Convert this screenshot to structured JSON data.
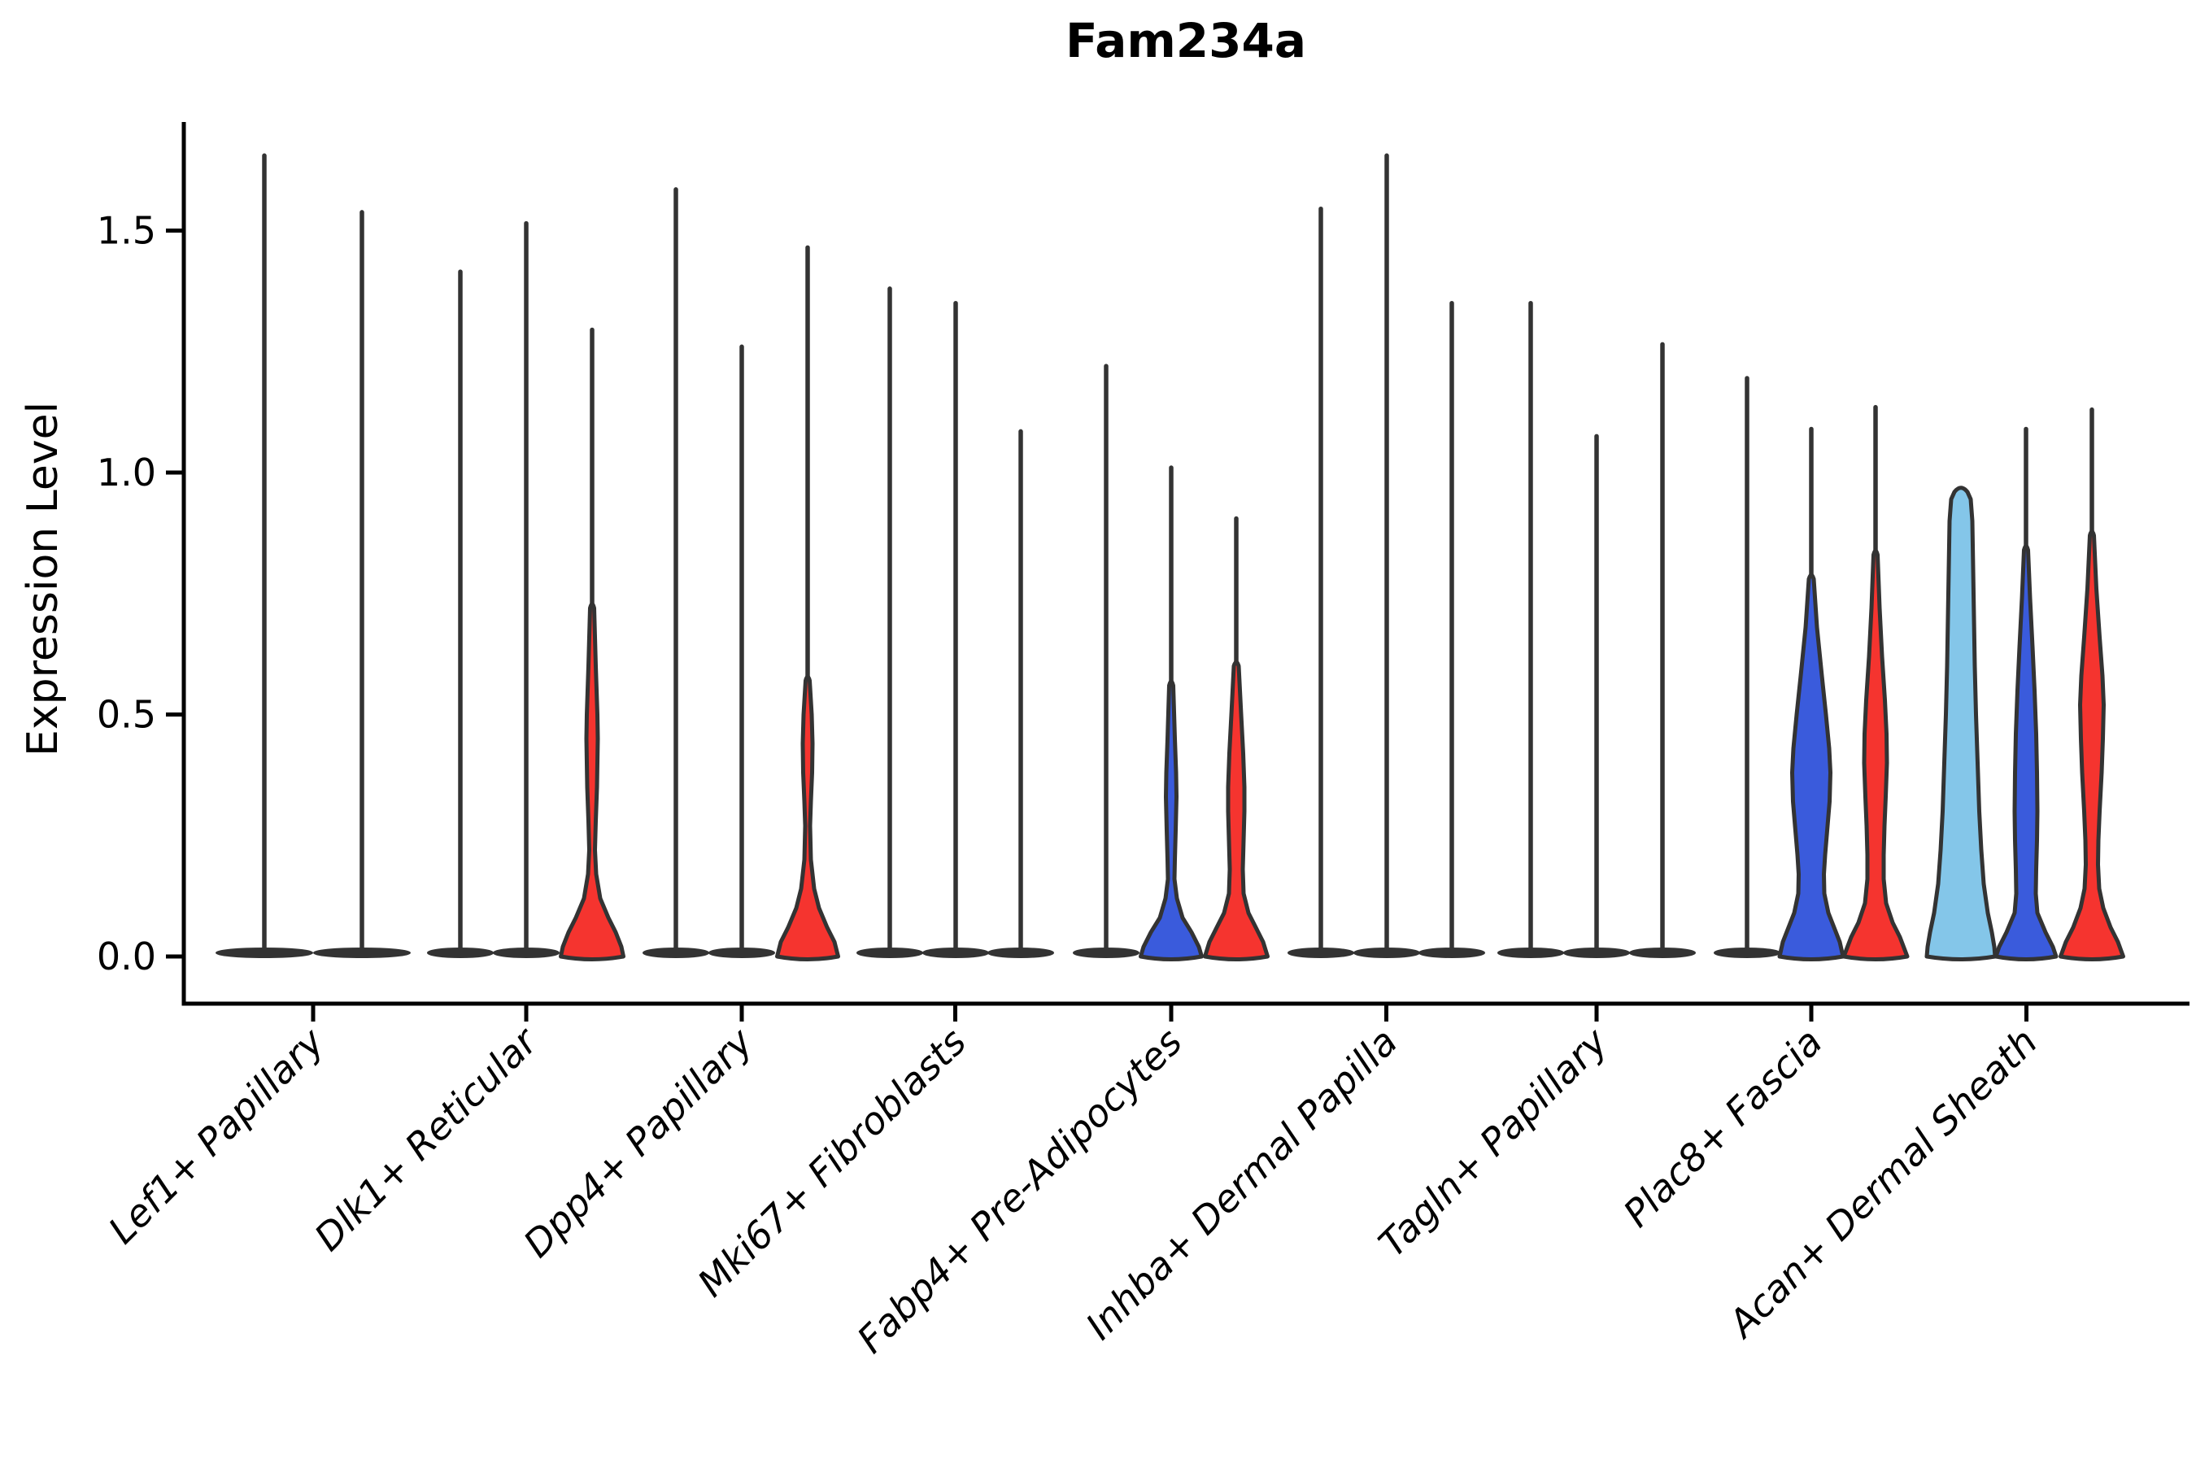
{
  "chart_data": {
    "type": "violin",
    "title": "Fam234a",
    "ylabel": "Expression Level",
    "xlabel": "",
    "yticks": [
      0.0,
      0.5,
      1.0,
      1.5
    ],
    "ylim": [
      -0.06,
      1.75
    ],
    "grid": false,
    "legend": "none",
    "categories": [
      "Lef1+ Papillary",
      "Dlk1+ Reticular",
      "Dpp4+ Papillary",
      "Mki67+ Fibroblasts",
      "Fabp4+ Pre-Adipocytes",
      "Inhba+ Dermal Papilla",
      "Tagln+ Papillary",
      "Plac8+ Fascia",
      "Acan+ Dermal Sheath"
    ],
    "splits": [
      {
        "name": "split-1",
        "color": "#84C6E9"
      },
      {
        "name": "split-2",
        "color": "#3A5BDC"
      },
      {
        "name": "split-3",
        "color": "#F5342F"
      }
    ],
    "outline_color": "#333333",
    "violins": [
      {
        "category": "Lef1+ Papillary",
        "split": 1,
        "x": 325,
        "max": 1.655,
        "style": "line",
        "half_width": 59
      },
      {
        "category": "Lef1+ Papillary",
        "split": 2,
        "x": 445,
        "max": 1.538,
        "style": "line",
        "half_width": 59
      },
      {
        "category": "Dlk1+ Reticular",
        "split": 1,
        "x": 566,
        "max": 1.415,
        "style": "line",
        "half_width": 40
      },
      {
        "category": "Dlk1+ Reticular",
        "split": 2,
        "x": 647,
        "max": 1.515,
        "style": "line",
        "half_width": 40
      },
      {
        "category": "Dlk1+ Reticular",
        "split": 3,
        "x": 728,
        "max": 1.295,
        "style": "filled",
        "color": "#F5342F",
        "profile": [
          [
            0.72,
            2.5
          ],
          [
            0.6,
            4.5
          ],
          [
            0.5,
            6.5
          ],
          [
            0.45,
            7
          ],
          [
            0.35,
            6
          ],
          [
            0.28,
            4.5
          ],
          [
            0.22,
            3.5
          ],
          [
            0.17,
            5
          ],
          [
            0.12,
            10
          ],
          [
            0.08,
            20
          ],
          [
            0.05,
            29
          ],
          [
            0.02,
            36
          ],
          [
            0,
            38.5
          ]
        ]
      },
      {
        "category": "Dpp4+ Papillary",
        "split": 1,
        "x": 831,
        "max": 1.585,
        "style": "line",
        "half_width": 40
      },
      {
        "category": "Dpp4+ Papillary",
        "split": 2,
        "x": 912,
        "max": 1.26,
        "style": "line",
        "half_width": 40
      },
      {
        "category": "Dpp4+ Papillary",
        "split": 3,
        "x": 993,
        "max": 1.465,
        "style": "filled",
        "color": "#F5342F",
        "profile": [
          [
            0.57,
            2.5
          ],
          [
            0.5,
            5
          ],
          [
            0.44,
            6
          ],
          [
            0.38,
            5.5
          ],
          [
            0.32,
            4
          ],
          [
            0.27,
            3
          ],
          [
            0.2,
            4
          ],
          [
            0.14,
            8
          ],
          [
            0.1,
            14
          ],
          [
            0.06,
            24
          ],
          [
            0.03,
            33
          ],
          [
            0,
            37.5
          ]
        ]
      },
      {
        "category": "Mki67+ Fibroblasts",
        "split": 1,
        "x": 1094,
        "max": 1.38,
        "style": "line",
        "half_width": 40
      },
      {
        "category": "Mki67+ Fibroblasts",
        "split": 2,
        "x": 1175,
        "max": 1.35,
        "style": "line",
        "half_width": 40
      },
      {
        "category": "Mki67+ Fibroblasts",
        "split": 3,
        "x": 1255,
        "max": 1.085,
        "style": "line",
        "half_width": 40
      },
      {
        "category": "Fabp4+ Pre-Adipocytes",
        "split": 1,
        "x": 1360,
        "max": 1.22,
        "style": "line",
        "half_width": 40
      },
      {
        "category": "Fabp4+ Pre-Adipocytes",
        "split": 2,
        "x": 1440,
        "max": 1.01,
        "style": "filled",
        "color": "#3A5BDC",
        "profile": [
          [
            0.56,
            2.5
          ],
          [
            0.45,
            4.5
          ],
          [
            0.38,
            6
          ],
          [
            0.33,
            6.5
          ],
          [
            0.26,
            5.5
          ],
          [
            0.2,
            4.5
          ],
          [
            0.16,
            4
          ],
          [
            0.12,
            7
          ],
          [
            0.08,
            14
          ],
          [
            0.05,
            25
          ],
          [
            0.02,
            34
          ],
          [
            0,
            37.5
          ]
        ]
      },
      {
        "category": "Fabp4+ Pre-Adipocytes",
        "split": 3,
        "x": 1520,
        "max": 0.905,
        "style": "filled",
        "color": "#F5342F",
        "profile": [
          [
            0.6,
            3
          ],
          [
            0.5,
            6
          ],
          [
            0.42,
            8.5
          ],
          [
            0.35,
            10
          ],
          [
            0.3,
            10
          ],
          [
            0.24,
            9
          ],
          [
            0.18,
            8
          ],
          [
            0.13,
            9
          ],
          [
            0.09,
            15
          ],
          [
            0.06,
            24
          ],
          [
            0.03,
            33
          ],
          [
            0,
            38.5
          ]
        ]
      },
      {
        "category": "Inhba+ Dermal Papilla",
        "split": 1,
        "x": 1624,
        "max": 1.545,
        "style": "line",
        "half_width": 40
      },
      {
        "category": "Inhba+ Dermal Papilla",
        "split": 2,
        "x": 1705,
        "max": 1.655,
        "style": "line",
        "half_width": 40
      },
      {
        "category": "Inhba+ Dermal Papilla",
        "split": 3,
        "x": 1785,
        "max": 1.35,
        "style": "line",
        "half_width": 40
      },
      {
        "category": "Tagln+ Papillary",
        "split": 1,
        "x": 1882,
        "max": 1.35,
        "style": "line",
        "half_width": 40
      },
      {
        "category": "Tagln+ Papillary",
        "split": 2,
        "x": 1963,
        "max": 1.075,
        "style": "line",
        "half_width": 40
      },
      {
        "category": "Tagln+ Papillary",
        "split": 3,
        "x": 2044,
        "max": 1.265,
        "style": "line",
        "half_width": 40
      },
      {
        "category": "Plac8+ Fascia",
        "split": 1,
        "x": 2148,
        "max": 1.195,
        "style": "line",
        "half_width": 40
      },
      {
        "category": "Plac8+ Fascia",
        "split": 2,
        "x": 2227,
        "max": 1.09,
        "style": "filled",
        "color": "#3A5BDC",
        "profile": [
          [
            0.78,
            3
          ],
          [
            0.68,
            7
          ],
          [
            0.58,
            13
          ],
          [
            0.5,
            18
          ],
          [
            0.43,
            22
          ],
          [
            0.38,
            23.5
          ],
          [
            0.32,
            22.5
          ],
          [
            0.26,
            19.5
          ],
          [
            0.21,
            17
          ],
          [
            0.17,
            15.5
          ],
          [
            0.13,
            16
          ],
          [
            0.09,
            21
          ],
          [
            0.06,
            28
          ],
          [
            0.03,
            35
          ],
          [
            0,
            39
          ]
        ]
      },
      {
        "category": "Plac8+ Fascia",
        "split": 3,
        "x": 2306,
        "max": 1.135,
        "style": "filled",
        "color": "#F5342F",
        "profile": [
          [
            0.83,
            2.5
          ],
          [
            0.72,
            5
          ],
          [
            0.62,
            8
          ],
          [
            0.53,
            11.5
          ],
          [
            0.46,
            13.5
          ],
          [
            0.4,
            14
          ],
          [
            0.33,
            12.5
          ],
          [
            0.27,
            11
          ],
          [
            0.21,
            10
          ],
          [
            0.16,
            10
          ],
          [
            0.11,
            13
          ],
          [
            0.07,
            21
          ],
          [
            0.04,
            30
          ],
          [
            0,
            39
          ]
        ]
      },
      {
        "category": "Acan+ Dermal Sheath",
        "split": 1,
        "x": 2411,
        "max": 0.96,
        "style": "filled",
        "color": "#84C6E9",
        "no_whisker": true,
        "profile": [
          [
            0.96,
            8
          ],
          [
            0.945,
            12
          ],
          [
            0.9,
            14
          ],
          [
            0.8,
            15
          ],
          [
            0.7,
            16
          ],
          [
            0.6,
            17
          ],
          [
            0.5,
            18.5
          ],
          [
            0.4,
            20.5
          ],
          [
            0.3,
            22.5
          ],
          [
            0.22,
            25
          ],
          [
            0.15,
            28
          ],
          [
            0.09,
            33
          ],
          [
            0.05,
            38
          ],
          [
            0.02,
            41
          ],
          [
            0,
            42
          ]
        ]
      },
      {
        "category": "Acan+ Dermal Sheath",
        "split": 2,
        "x": 2491,
        "max": 1.09,
        "style": "filled",
        "color": "#3A5BDC",
        "profile": [
          [
            0.84,
            2.5
          ],
          [
            0.74,
            5
          ],
          [
            0.64,
            8
          ],
          [
            0.55,
            10.5
          ],
          [
            0.46,
            12.5
          ],
          [
            0.38,
            13.5
          ],
          [
            0.3,
            14
          ],
          [
            0.24,
            13.5
          ],
          [
            0.18,
            12.5
          ],
          [
            0.13,
            12
          ],
          [
            0.09,
            14
          ],
          [
            0.05,
            24
          ],
          [
            0.02,
            33
          ],
          [
            0,
            37
          ]
        ]
      },
      {
        "category": "Acan+ Dermal Sheath",
        "split": 3,
        "x": 2572,
        "max": 1.13,
        "style": "filled",
        "color": "#F5342F",
        "profile": [
          [
            0.87,
            2.5
          ],
          [
            0.76,
            5.5
          ],
          [
            0.66,
            9.5
          ],
          [
            0.58,
            13
          ],
          [
            0.52,
            14.5
          ],
          [
            0.45,
            13.5
          ],
          [
            0.38,
            12
          ],
          [
            0.3,
            9.5
          ],
          [
            0.24,
            8
          ],
          [
            0.19,
            7.5
          ],
          [
            0.14,
            9
          ],
          [
            0.1,
            14
          ],
          [
            0.06,
            23
          ],
          [
            0.03,
            32
          ],
          [
            0,
            38.5
          ]
        ]
      }
    ]
  }
}
